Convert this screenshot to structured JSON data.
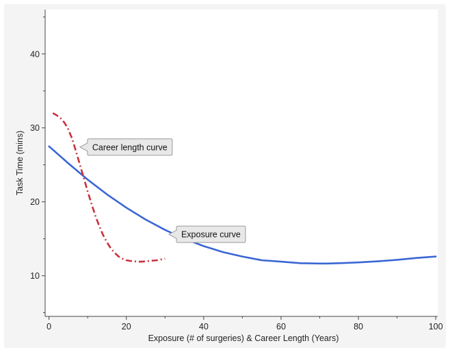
{
  "chart_data": {
    "type": "line",
    "xlabel": "Exposure (# of surgeries) & Career Length (Years)",
    "ylabel": "Task Time (mins)",
    "xlim": [
      -1,
      100.5
    ],
    "ylim": [
      4.5,
      46
    ],
    "x_ticks": [
      0,
      20,
      40,
      60,
      80,
      100
    ],
    "x_minor_ticks": [
      10,
      30,
      50,
      70,
      90
    ],
    "y_ticks": [
      10,
      20,
      30,
      40
    ],
    "y_minor_ticks": [
      5,
      15,
      25,
      35,
      45
    ],
    "grid": false,
    "series": [
      {
        "color": "#3a66d4",
        "dash": "solid",
        "x": [
          0,
          5,
          10,
          15,
          20,
          25,
          30,
          35,
          40,
          45,
          50,
          55,
          60,
          65,
          70,
          72,
          75,
          80,
          85,
          90,
          95,
          100
        ],
        "y": [
          27.5,
          25.2,
          23.0,
          21.0,
          19.2,
          17.6,
          16.2,
          15.0,
          14.0,
          13.2,
          12.6,
          12.1,
          11.9,
          11.7,
          11.65,
          11.65,
          11.7,
          11.8,
          11.95,
          12.15,
          12.4,
          12.6
        ]
      },
      {
        "color": "#c8303c",
        "dash": "dashdot",
        "x": [
          1,
          2,
          3,
          4,
          5,
          6,
          7,
          8,
          9,
          10,
          11,
          12,
          13,
          14,
          15,
          16,
          17,
          18,
          19,
          20,
          21,
          22,
          23,
          24,
          25,
          26,
          27,
          28,
          29,
          30
        ],
        "y": [
          32.0,
          31.7,
          31.3,
          30.7,
          29.8,
          28.5,
          26.8,
          25.0,
          23.2,
          21.4,
          19.7,
          18.1,
          16.7,
          15.5,
          14.5,
          13.7,
          13.1,
          12.6,
          12.3,
          12.1,
          12.0,
          11.95,
          11.9,
          11.9,
          11.95,
          12.0,
          12.05,
          12.1,
          12.2,
          12.3
        ]
      }
    ],
    "annotations": [
      {
        "text": "Career length curve",
        "x": 8,
        "y": 27.4,
        "side": "right"
      },
      {
        "text": "Exposure curve",
        "x": 31,
        "y": 15.6,
        "side": "right"
      }
    ]
  },
  "style": {
    "axis_color": "#444444",
    "callout_fill": "#e8e8e8",
    "callout_stroke": "#9a9a9a"
  }
}
